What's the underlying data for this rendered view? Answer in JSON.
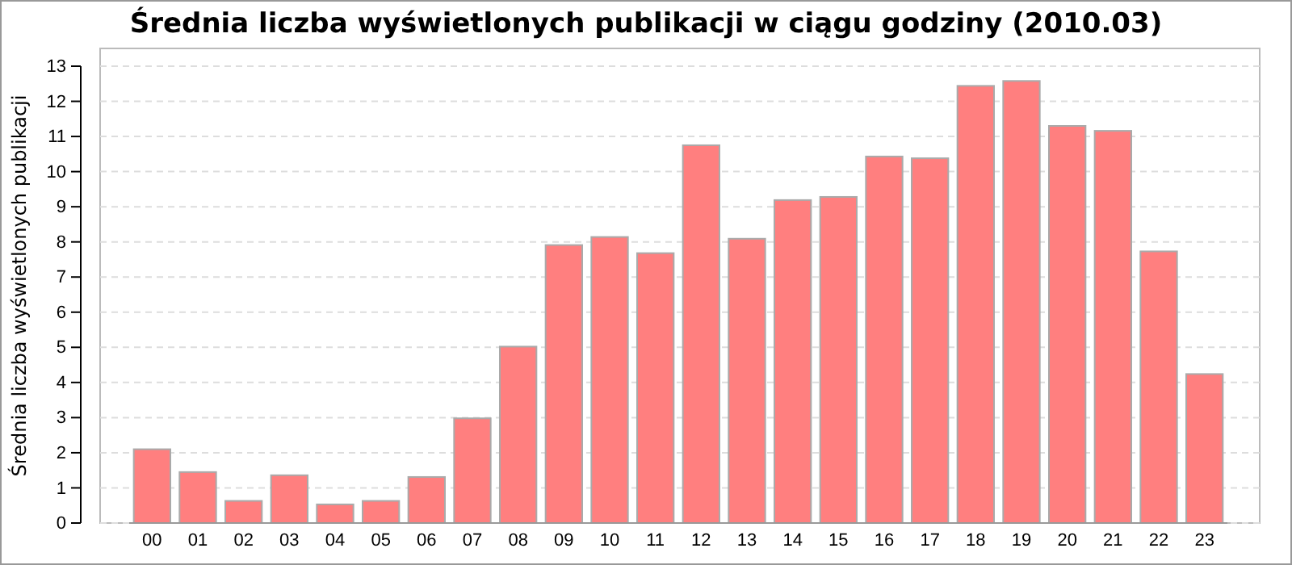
{
  "chart_data": {
    "type": "bar",
    "title": "Średnia liczba wyświetlonych publikacji w ciągu godziny (2010.03)",
    "ylabel": "Średnia liczba wyświetlonych publikacji",
    "categories": [
      "00",
      "01",
      "02",
      "03",
      "04",
      "05",
      "06",
      "07",
      "08",
      "09",
      "10",
      "11",
      "12",
      "13",
      "14",
      "15",
      "16",
      "17",
      "18",
      "19",
      "20",
      "21",
      "22",
      "23"
    ],
    "values": [
      2.1,
      1.45,
      0.63,
      1.36,
      0.53,
      0.63,
      1.31,
      2.98,
      5.02,
      7.91,
      8.14,
      7.68,
      10.75,
      8.09,
      9.19,
      9.28,
      10.43,
      10.38,
      12.44,
      12.58,
      11.3,
      11.16,
      7.73,
      4.24
    ],
    "color": "#ff7f7f",
    "ylim": [
      0,
      13
    ],
    "yticks": [
      0,
      1,
      2,
      3,
      4,
      5,
      6,
      7,
      8,
      9,
      10,
      11,
      12,
      13
    ],
    "grid": "y"
  }
}
